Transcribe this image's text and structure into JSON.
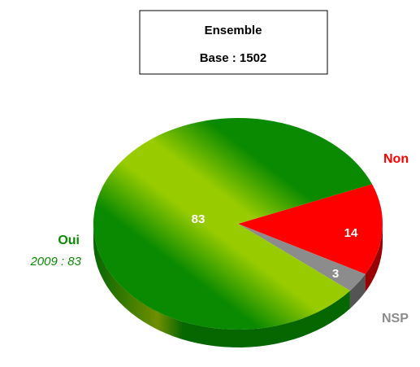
{
  "chart_data": {
    "type": "pie",
    "title": "Ensemble",
    "subtitle": "Base : 1502",
    "categories": [
      "Oui",
      "Non",
      "NSP"
    ],
    "values": [
      83,
      14,
      3
    ],
    "colors": [
      "#0a8a00",
      "#ff0000",
      "#8c8c8c"
    ],
    "annotation": "2009 : 83"
  }
}
